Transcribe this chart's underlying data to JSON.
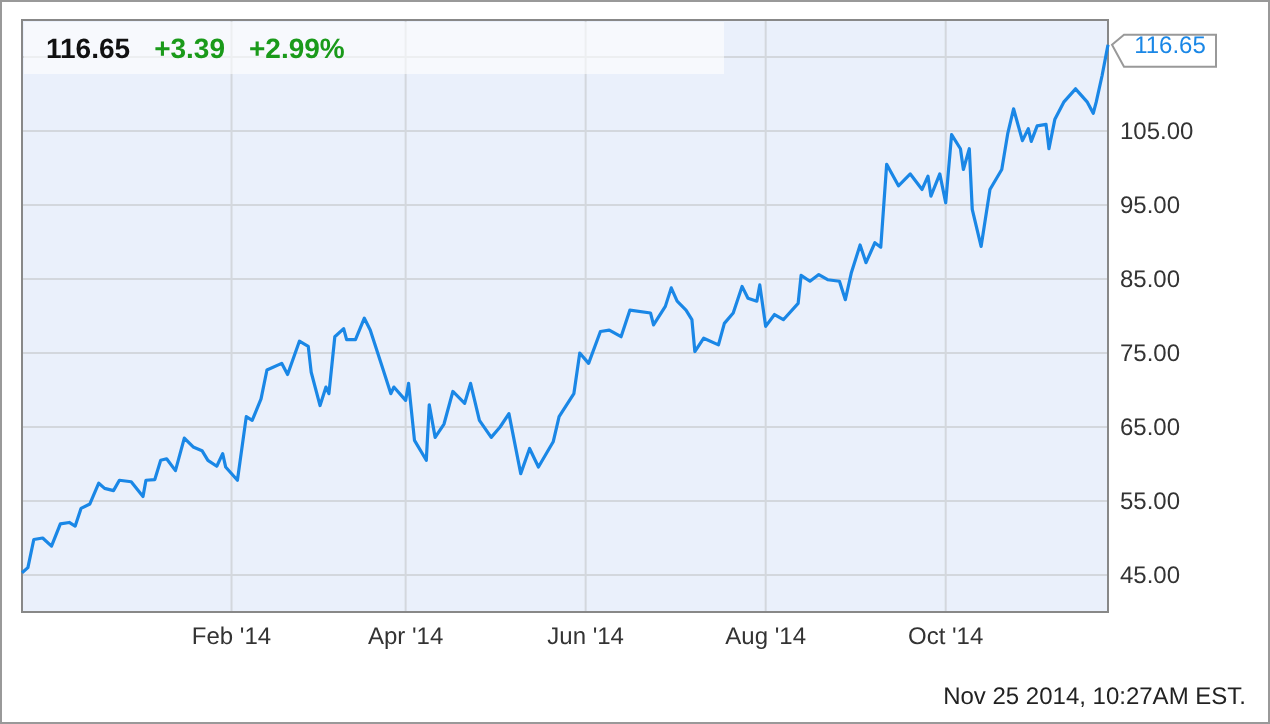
{
  "chart_data": {
    "type": "line",
    "title": "116.65",
    "subtitle": "+3.39  +2.99%",
    "annotations": [
      {
        "text": "116.65",
        "x": "2014-11-25",
        "y": 116.65
      },
      "Nov 25 2014, 10:27AM EST."
    ],
    "xlim": [
      "2013-11-22",
      "2014-11-25"
    ],
    "xticks": [
      {
        "value": "2014-02-01",
        "label": "Feb '14"
      },
      {
        "value": "2014-04-01",
        "label": "Apr '14"
      },
      {
        "value": "2014-06-01",
        "label": "Jun '14"
      },
      {
        "value": "2014-08-01",
        "label": "Aug '14"
      },
      {
        "value": "2014-10-01",
        "label": "Oct '14"
      }
    ],
    "ylim": [
      40,
      120
    ],
    "yticks": [
      {
        "value": 45,
        "label": "45.00"
      },
      {
        "value": 55,
        "label": "55.00"
      },
      {
        "value": 65,
        "label": "65.00"
      },
      {
        "value": 75,
        "label": "75.00"
      },
      {
        "value": 85,
        "label": "85.00"
      },
      {
        "value": 95,
        "label": "95.00"
      },
      {
        "value": 105,
        "label": "105.00"
      },
      {
        "value": 115,
        "label": null
      }
    ],
    "grid": true,
    "marker": "none",
    "line_style": "solid",
    "x": [
      "2013-11-22",
      "2013-11-24",
      "2013-11-26",
      "2013-11-29",
      "2013-12-02",
      "2013-12-05",
      "2013-12-08",
      "2013-12-10",
      "2013-12-12",
      "2013-12-15",
      "2013-12-18",
      "2013-12-20",
      "2013-12-23",
      "2013-12-25",
      "2013-12-29",
      "2014-01-02",
      "2014-01-03",
      "2014-01-06",
      "2014-01-08",
      "2014-01-10",
      "2014-01-13",
      "2014-01-16",
      "2014-01-19",
      "2014-01-22",
      "2014-01-24",
      "2014-01-27",
      "2014-01-29",
      "2014-01-30",
      "2014-02-03",
      "2014-02-06",
      "2014-02-08",
      "2014-02-11",
      "2014-02-13",
      "2014-02-18",
      "2014-02-20",
      "2014-02-24",
      "2014-02-27",
      "2014-02-28",
      "2014-03-03",
      "2014-03-05",
      "2014-03-06",
      "2014-03-08",
      "2014-03-11",
      "2014-03-12",
      "2014-03-15",
      "2014-03-18",
      "2014-03-20",
      "2014-03-24",
      "2014-03-27",
      "2014-03-28",
      "2014-04-01",
      "2014-04-02",
      "2014-04-04",
      "2014-04-08",
      "2014-04-09",
      "2014-04-11",
      "2014-04-14",
      "2014-04-17",
      "2014-04-21",
      "2014-04-23",
      "2014-04-26",
      "2014-04-30",
      "2014-05-03",
      "2014-05-06",
      "2014-05-10",
      "2014-05-13",
      "2014-05-16",
      "2014-05-21",
      "2014-05-23",
      "2014-05-28",
      "2014-05-30",
      "2014-06-02",
      "2014-06-06",
      "2014-06-09",
      "2014-06-13",
      "2014-06-16",
      "2014-06-23",
      "2014-06-24",
      "2014-06-28",
      "2014-06-30",
      "2014-07-02",
      "2014-07-05",
      "2014-07-07",
      "2014-07-08",
      "2014-07-11",
      "2014-07-16",
      "2014-07-18",
      "2014-07-21",
      "2014-07-24",
      "2014-07-26",
      "2014-07-29",
      "2014-07-30",
      "2014-08-01",
      "2014-08-04",
      "2014-08-07",
      "2014-08-12",
      "2014-08-13",
      "2014-08-16",
      "2014-08-19",
      "2014-08-22",
      "2014-08-26",
      "2014-08-28",
      "2014-08-30",
      "2014-09-02",
      "2014-09-04",
      "2014-09-07",
      "2014-09-09",
      "2014-09-11",
      "2014-09-15",
      "2014-09-19",
      "2014-09-23",
      "2014-09-25",
      "2014-09-26",
      "2014-09-29",
      "2014-10-01",
      "2014-10-03",
      "2014-10-06",
      "2014-10-07",
      "2014-10-09",
      "2014-10-10",
      "2014-10-13",
      "2014-10-16",
      "2014-10-20",
      "2014-10-22",
      "2014-10-24",
      "2014-10-27",
      "2014-10-29",
      "2014-10-30",
      "2014-11-01",
      "2014-11-04",
      "2014-11-05",
      "2014-11-07",
      "2014-11-10",
      "2014-11-14",
      "2014-11-18",
      "2014-11-20",
      "2014-11-21",
      "2014-11-23",
      "2014-11-25"
    ],
    "series": [
      {
        "color": "#1a87e6",
        "values": [
          45.3,
          46,
          49.8,
          50,
          48.9,
          51.9,
          52.1,
          51.6,
          54,
          54.6,
          57.4,
          56.7,
          56.4,
          57.8,
          57.6,
          55.6,
          57.8,
          57.9,
          60.5,
          60.7,
          59.1,
          63.5,
          62.3,
          61.8,
          60.5,
          59.7,
          61.4,
          59.6,
          57.8,
          66.4,
          65.9,
          68.8,
          72.7,
          73.6,
          72.1,
          76.6,
          75.9,
          72.4,
          67.9,
          70.4,
          69.5,
          77.2,
          78.3,
          76.8,
          76.8,
          79.7,
          78.1,
          73.2,
          69.5,
          70.4,
          68.6,
          70.9,
          63.2,
          60.5,
          68,
          63.6,
          65.4,
          69.8,
          68.2,
          70.9,
          65.9,
          63.6,
          65,
          66.8,
          58.7,
          62.1,
          59.6,
          63,
          66.4,
          69.5,
          75,
          73.6,
          77.9,
          78.1,
          77.2,
          80.8,
          80.4,
          78.8,
          81.3,
          83.8,
          82,
          80.8,
          79.5,
          75.2,
          77,
          76.1,
          79,
          80.4,
          84,
          82.4,
          82,
          84.2,
          78.6,
          80.2,
          79.5,
          81.7,
          85.5,
          84.7,
          85.6,
          84.9,
          84.7,
          82.2,
          85.8,
          89.6,
          87.2,
          89.9,
          89.3,
          100.5,
          97.6,
          99.2,
          97.1,
          98.9,
          96.2,
          99.2,
          95.3,
          104.5,
          102.6,
          99.8,
          102.6,
          94.4,
          89.4,
          97.1,
          99.8,
          104.6,
          108,
          103.7,
          105.3,
          103.6,
          105.7,
          105.9,
          102.6,
          106.6,
          108.9,
          110.7,
          108.9,
          107.4,
          108.9,
          112.5,
          116.65
        ]
      }
    ]
  }
}
